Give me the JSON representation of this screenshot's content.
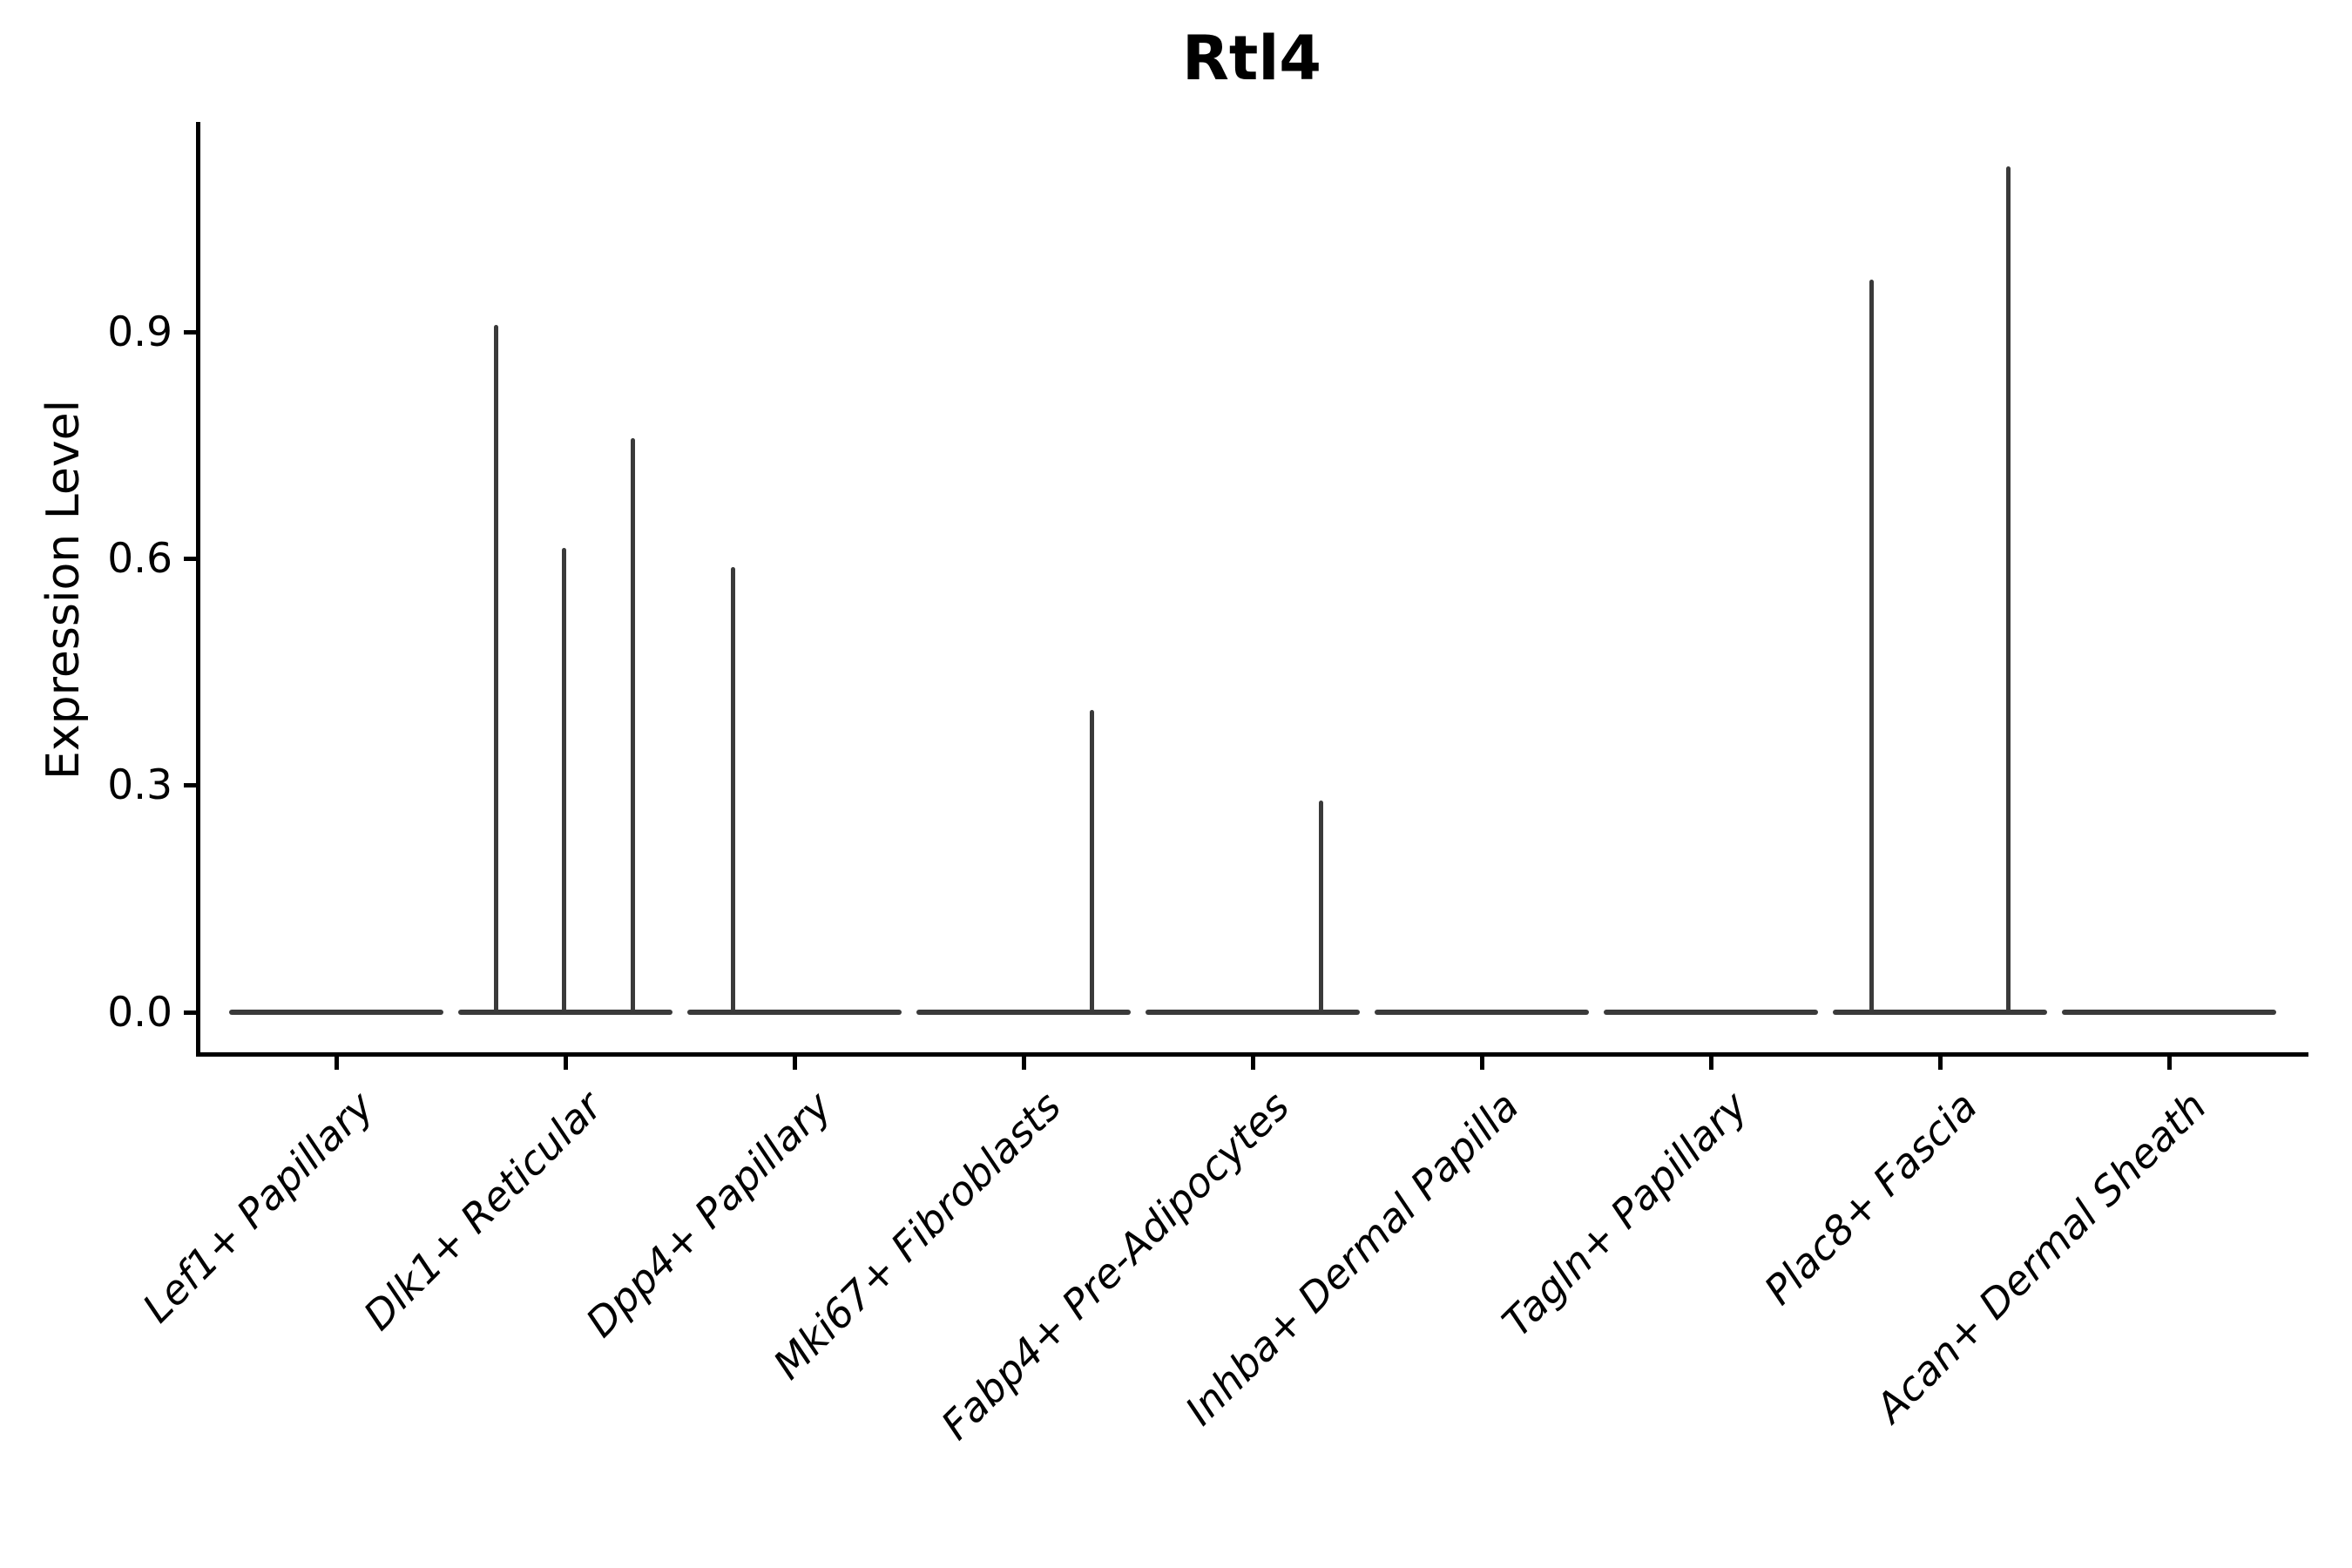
{
  "title": "Rtl4",
  "axes": {
    "y_label": "Expression Level",
    "y_tick_labels": [
      "0.0",
      "0.3",
      "0.6",
      "0.9"
    ]
  },
  "colors": {
    "violin": "#3a3a3a",
    "axis": "#000000",
    "background": "#ffffff"
  },
  "chart_data": {
    "type": "violin",
    "title": "Rtl4",
    "xlabel": "",
    "ylabel": "Expression Level",
    "ylim": [
      -0.055,
      1.18
    ],
    "yticks": [
      0.0,
      0.3,
      0.6,
      0.9
    ],
    "grid": false,
    "legend": false,
    "categories": [
      "Lef1+ Papillary",
      "Dlk1+ Reticular",
      "Dpp4+ Papillary",
      "Mki67+ Fibroblasts",
      "Fabp4+ Pre-Adipocytes",
      "Inhba+ Dermal Papilla",
      "Tagln+ Papillary",
      "Plac8+ Fascia",
      "Acan+ Dermal Sheath"
    ],
    "violins": [
      {
        "category": "Lef1+ Papillary",
        "baseline_value": 0.0,
        "spikes": []
      },
      {
        "category": "Dlk1+ Reticular",
        "baseline_value": 0.0,
        "spikes": [
          {
            "dx": -80,
            "value": 0.91
          },
          {
            "dx": -2,
            "value": 0.615
          },
          {
            "dx": 77,
            "value": 0.76
          }
        ]
      },
      {
        "category": "Dpp4+ Papillary",
        "baseline_value": 0.0,
        "spikes": [
          {
            "dx": -71,
            "value": 0.59
          }
        ]
      },
      {
        "category": "Mki67+ Fibroblasts",
        "baseline_value": 0.0,
        "spikes": [
          {
            "dx": 78,
            "value": 0.4
          }
        ]
      },
      {
        "category": "Fabp4+ Pre-Adipocytes",
        "baseline_value": 0.0,
        "spikes": [
          {
            "dx": 78,
            "value": 0.28
          }
        ]
      },
      {
        "category": "Inhba+ Dermal Papilla",
        "baseline_value": 0.0,
        "spikes": []
      },
      {
        "category": "Tagln+ Papillary",
        "baseline_value": 0.0,
        "spikes": []
      },
      {
        "category": "Plac8+ Fascia",
        "baseline_value": 0.0,
        "spikes": [
          {
            "dx": -79,
            "value": 0.97
          },
          {
            "dx": 78,
            "value": 1.12
          }
        ]
      },
      {
        "category": "Acan+ Dermal Sheath",
        "baseline_value": 0.0,
        "spikes": []
      }
    ]
  }
}
